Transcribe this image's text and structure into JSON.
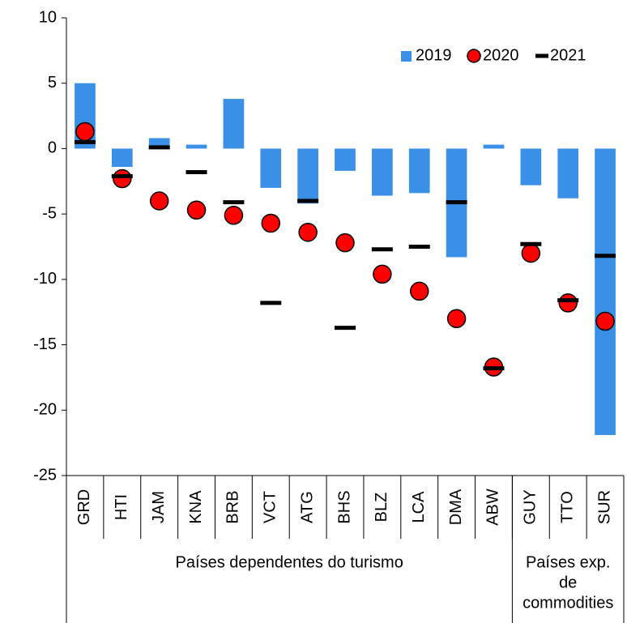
{
  "chart_data": {
    "type": "bar-dot-dash",
    "categories": [
      "GRD",
      "HTI",
      "JAM",
      "KNA",
      "BRB",
      "VCT",
      "ATG",
      "BHS",
      "BLZ",
      "LCA",
      "DMA",
      "ABW",
      "GUY",
      "TTO",
      "SUR"
    ],
    "series": [
      {
        "name": "2019",
        "color": "#3a8fe6",
        "mark": "bar",
        "values": [
          5.0,
          -1.4,
          0.8,
          0.3,
          3.8,
          -3.0,
          -4.2,
          -1.7,
          -3.6,
          -3.4,
          -8.3,
          0.3,
          -2.8,
          -3.8,
          -21.9
        ]
      },
      {
        "name": "2020",
        "color": "#ff0000",
        "mark": "circle",
        "values": [
          1.3,
          -2.3,
          -4.0,
          -4.7,
          -5.1,
          -5.7,
          -6.4,
          -7.2,
          -9.6,
          -10.9,
          -13.0,
          -16.7,
          -8.0,
          -11.8,
          -13.2
        ]
      },
      {
        "name": "2021",
        "color": "#000000",
        "mark": "dash",
        "values": [
          0.5,
          -2.1,
          0.1,
          -1.8,
          -4.1,
          -11.8,
          -4.0,
          -13.7,
          -7.7,
          -7.5,
          -4.1,
          -16.8,
          -7.3,
          -11.6,
          -8.2
        ]
      }
    ],
    "groups": [
      {
        "label_lines": [
          "Países dependentes do turismo"
        ],
        "count": 12
      },
      {
        "label_lines": [
          "Países exp.",
          "de",
          "commodities"
        ],
        "count": 3
      }
    ],
    "ylim": [
      -25,
      10
    ],
    "yticks": [
      10,
      5,
      0,
      -5,
      -10,
      -15,
      -20,
      -25
    ],
    "grid": false,
    "legend": "top-right"
  }
}
